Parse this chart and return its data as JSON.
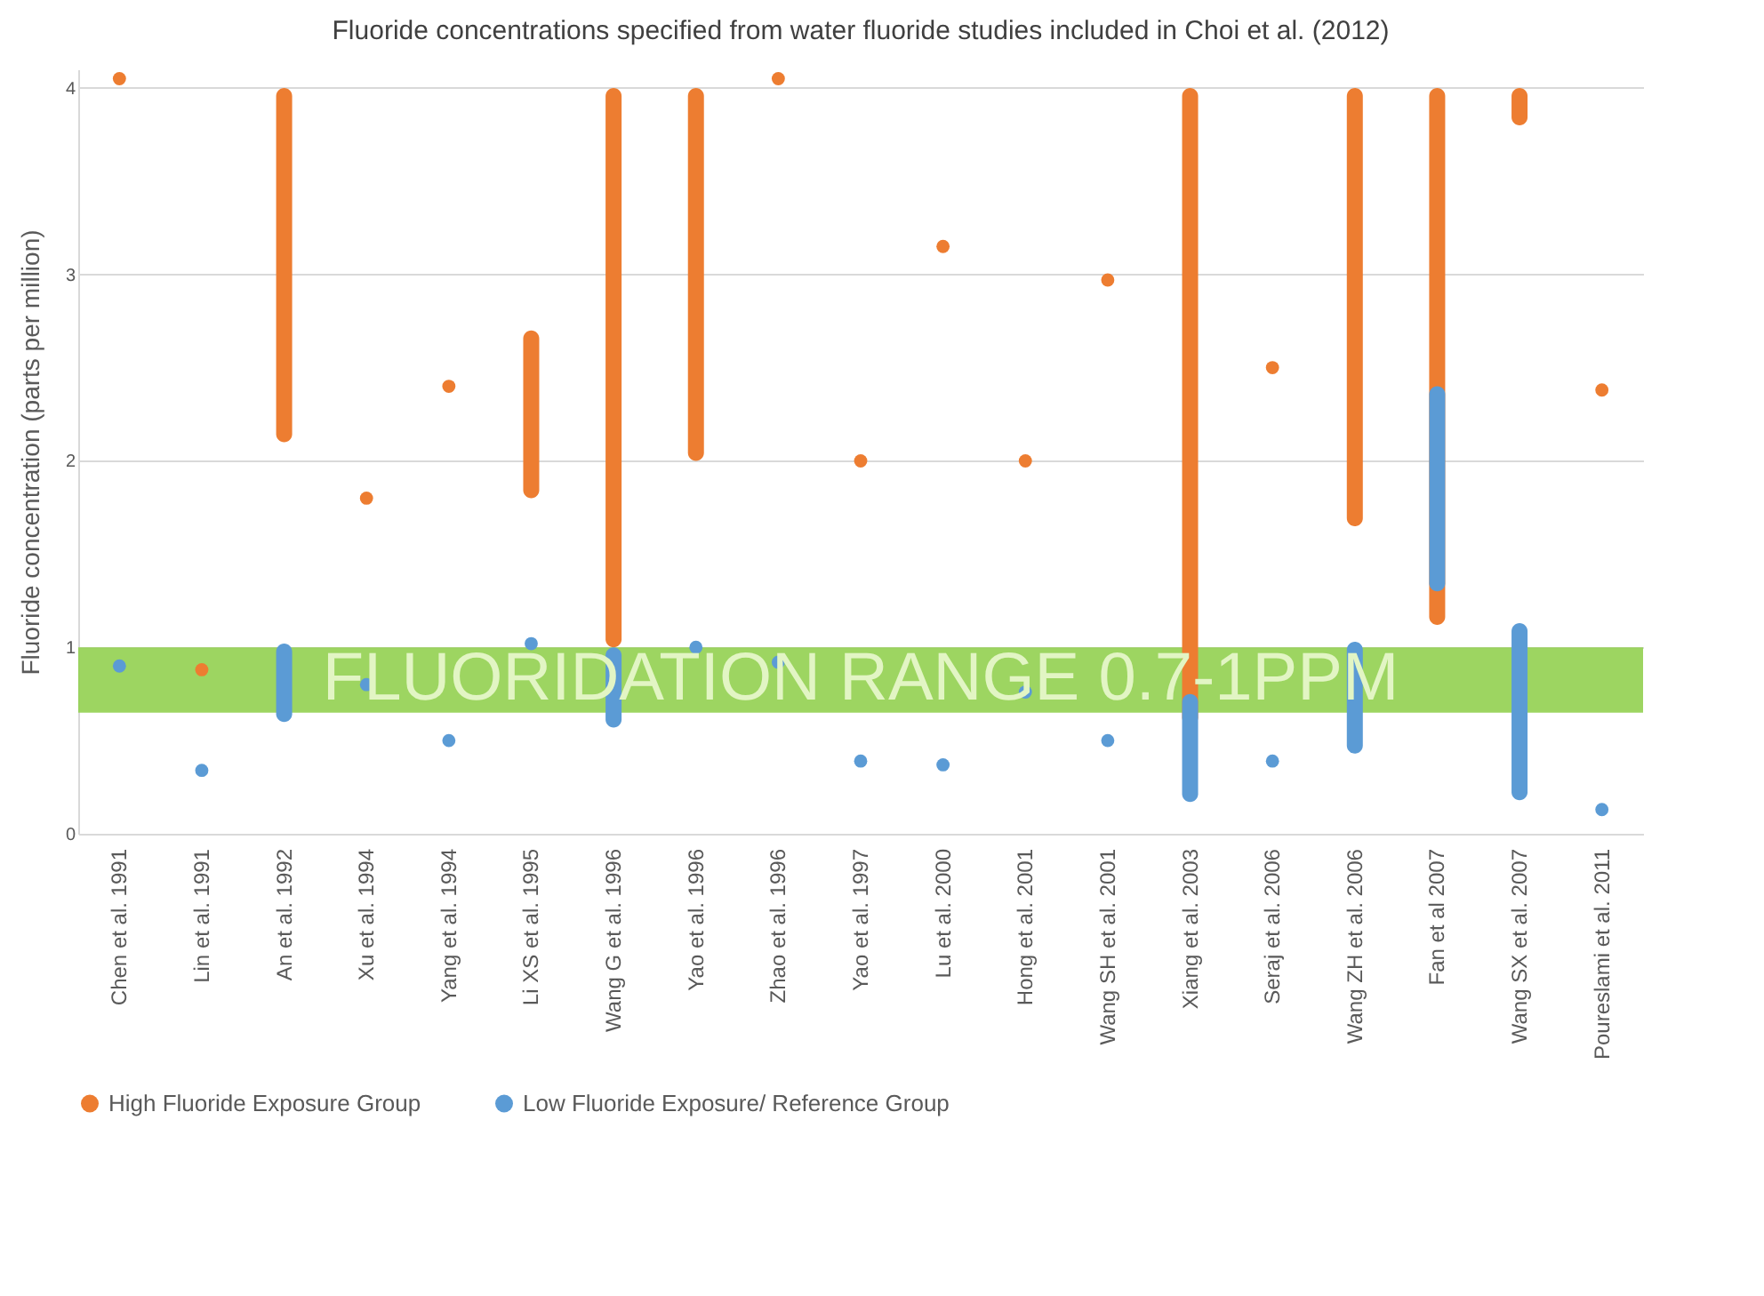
{
  "chart_data": {
    "type": "bar",
    "title": "Fluoride concentrations specified from water fluoride studies included in Choi et al. (2012)",
    "ylabel": "Fluoride concentration (parts per million)",
    "categories": [
      "Chen et al. 1991",
      "Lin et al. 1991",
      "An et al. 1992",
      "Xu et al. 1994",
      "Yang et al. 1994",
      "Li XS et al. 1995",
      "Wang G et al. 1996",
      "Yao et al. 1996",
      "Zhao et al. 1996",
      "Yao et al. 1997",
      "Lu et al. 2000",
      "Hong et al. 2001",
      "Wang SH et al. 2001",
      "Xiang et al. 2003",
      "Seraj et al. 2006",
      "Wang ZH et al. 2006",
      "Fan et al 2007",
      "Wang SX et al. 2007",
      "Poureslami et al. 2011"
    ],
    "series": [
      {
        "name": "High Fluoride Exposure Group",
        "color": "#ed7d31",
        "base": [
          null,
          null,
          2.1,
          null,
          null,
          1.8,
          1.0,
          2.0,
          null,
          null,
          null,
          null,
          null,
          0.58,
          null,
          1.65,
          1.12,
          3.8,
          null
        ],
        "values": [
          null,
          null,
          1.9,
          null,
          null,
          0.9,
          3.0,
          2.0,
          null,
          null,
          null,
          null,
          null,
          3.42,
          null,
          2.35,
          2.88,
          0.2,
          null
        ]
      },
      {
        "type": "scatter",
        "color": "#ed7d31",
        "values": [
          4.05,
          0.88,
          null,
          1.8,
          2.4,
          null,
          null,
          null,
          4.05,
          2.0,
          3.15,
          2.0,
          2.97,
          null,
          2.5,
          null,
          null,
          null,
          2.38
        ]
      },
      {
        "name": "Low Fluoride Exposure/ Reference Group",
        "color": "#5b9bd5",
        "base": [
          null,
          null,
          0.6,
          null,
          null,
          null,
          0.57,
          null,
          null,
          null,
          null,
          null,
          null,
          0.17,
          null,
          0.43,
          1.3,
          0.18,
          null
        ],
        "values": [
          null,
          null,
          0.42,
          null,
          null,
          null,
          0.43,
          null,
          null,
          null,
          null,
          null,
          null,
          0.58,
          null,
          0.6,
          1.1,
          0.95,
          null
        ]
      },
      {
        "type": "scatter",
        "color": "#5b9bd5",
        "values": [
          0.9,
          0.34,
          null,
          0.8,
          0.5,
          1.02,
          null,
          1.0,
          0.92,
          0.39,
          0.37,
          0.76,
          0.5,
          null,
          0.39,
          null,
          null,
          null,
          0.13
        ]
      }
    ],
    "bands": [
      {
        "axis": "y",
        "from": 0.65,
        "to": 1.0,
        "label": "FLUORIDATION RANGE 0.7-1PPM",
        "color": "#92d050"
      }
    ],
    "ylim": [
      0,
      4.1
    ],
    "yticks": [
      0,
      1,
      2,
      3,
      4
    ],
    "grid": "y",
    "legend": "bottom"
  }
}
